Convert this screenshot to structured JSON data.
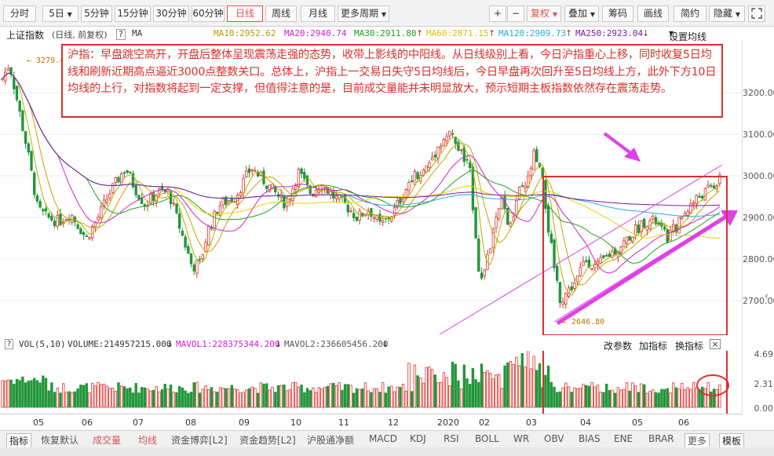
{
  "toolbar": {
    "left_tabs": [
      "分时",
      "5日",
      "5分钟",
      "15分钟",
      "30分钟",
      "60分钟",
      "日线",
      "周线",
      "月线",
      "更多周期"
    ],
    "active_tab": "日线",
    "plus": "+",
    "minus": "−",
    "fq_label": "复权",
    "right_tabs": [
      "叠加",
      "筹码",
      "画线",
      "简约",
      "隐藏"
    ],
    "fullscreen_icon": "expand-icon"
  },
  "info": {
    "index_name": "上证指数",
    "period_fq": "(日线, 前复权)",
    "help": "?",
    "ma_label": "MA",
    "ma10": "MA10:2952.62",
    "ma20": "MA20:2940.74",
    "ma30": "MA30:2911.80",
    "ma60": "MA60:2871.15",
    "ma120": "MA120:2909.73",
    "ma250": "MA250:2923.04",
    "set_ma": "设置均线"
  },
  "annotation": {
    "text": "沪指：早盘跳空高开，开盘后整体呈现震荡走强的态势，收带上影线的中阳线。从日线级别上看，今日沪指重心上移，同时收复5日均线和刷新近期高点逼近3000点整数关口。总体上，沪指上一交易日失守5日均线后，今日早盘再次回升至5日均线上方，此外下方10日均线的上行，对指数将起到一定支撑，但值得注意的是，目前成交量能并未明显放大，预示短期主板指数依然存在震荡走势。"
  },
  "chart_labels": {
    "high_label": "3279.49",
    "low_label": "2646.80"
  },
  "price_axis": [
    "3200.00",
    "3100.00",
    "3000.00",
    "2900.00",
    "2800.00",
    "2700.00"
  ],
  "vol_header": {
    "vol": "VOL(5,10)",
    "volume": "VOLUME:214957215.000",
    "mavol1": "MAVOL1:228375344.200",
    "mavol2": "MAVOL2:236605456.200",
    "adjust": "改参数",
    "add_indicator": "加指标",
    "switch_indicator": "换指标",
    "close": "×"
  },
  "vol_axis": [
    "4.69",
    "2.31",
    "0.00"
  ],
  "x_axis": [
    "05",
    "06",
    "07",
    "08",
    "09",
    "10",
    "11",
    "12",
    "2020",
    "02",
    "03",
    "04",
    "05",
    "06"
  ],
  "bottom_tabs": [
    "指标",
    "恢复默认",
    "成交量",
    "均线",
    "资金博弈[L2]",
    "资金趋势[L2]",
    "沪股通净额",
    "MACD",
    "KDJ",
    "RSI",
    "BOLL",
    "WR",
    "OBV",
    "BIAS",
    "ENE",
    "BRAR",
    "更多",
    "模板"
  ],
  "colors": {
    "up": "#e0322e",
    "down": "#22963a",
    "ma5": "#b0b000",
    "ma10": "#c8a000",
    "ma20": "#d020d0",
    "ma30": "#20a020",
    "ma60": "#e8d000",
    "ma120": "#20b0d0",
    "ma250": "#7a1aa0",
    "annotation": "#d9302e",
    "arrow": "#e040e8"
  },
  "chart_data": {
    "type": "candlestick",
    "ylim": [
      2600,
      3300
    ],
    "price_ticks": [
      2700,
      2800,
      2900,
      3000,
      3100,
      3200
    ],
    "high_annotation": 3279.49,
    "low_annotation": 2646.8,
    "volume_ticks": [
      0.0,
      2.31,
      4.69
    ]
  }
}
